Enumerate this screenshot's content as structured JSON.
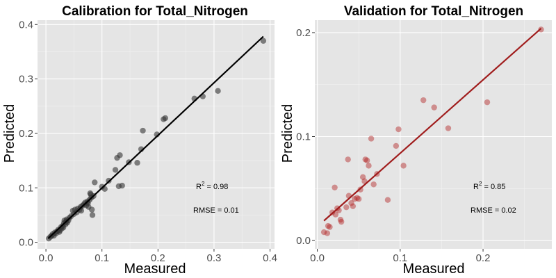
{
  "chart_data": [
    {
      "type": "scatter",
      "title": "Calibration for Total_Nitrogen",
      "xlabel": "Measured",
      "ylabel": "Predicted",
      "xlim": [
        -0.015,
        0.408
      ],
      "ylim": [
        -0.012,
        0.408
      ],
      "xticks": [
        0.0,
        0.1,
        0.2,
        0.3,
        0.4
      ],
      "xtick_labels": [
        "0.0",
        "0.1",
        "0.2",
        "0.3",
        "0.4"
      ],
      "yticks": [
        0.0,
        0.1,
        0.2,
        0.3,
        0.4
      ],
      "ytick_labels": [
        "0.0",
        "0.1",
        "0.2",
        "0.3",
        "0.4"
      ],
      "grid": true,
      "background": "#e5e5e5",
      "point_color": "#333333",
      "line_color": "#000000",
      "fit_line": {
        "x": [
          0.004,
          0.388
        ],
        "y": [
          0.007,
          0.378
        ]
      },
      "annotations": {
        "r2_label": "R",
        "r2_sup": "2",
        "r2_value": " = 0.98",
        "rmse": "RMSE = 0.01"
      },
      "points": {
        "x": [
          0.005,
          0.008,
          0.01,
          0.012,
          0.014,
          0.016,
          0.018,
          0.02,
          0.022,
          0.024,
          0.025,
          0.027,
          0.028,
          0.03,
          0.031,
          0.032,
          0.033,
          0.035,
          0.036,
          0.037,
          0.038,
          0.04,
          0.042,
          0.045,
          0.048,
          0.05,
          0.052,
          0.055,
          0.057,
          0.06,
          0.062,
          0.063,
          0.065,
          0.068,
          0.07,
          0.072,
          0.074,
          0.075,
          0.076,
          0.078,
          0.079,
          0.08,
          0.081,
          0.082,
          0.083,
          0.085,
          0.087,
          0.1,
          0.105,
          0.112,
          0.124,
          0.127,
          0.13,
          0.132,
          0.136,
          0.148,
          0.163,
          0.17,
          0.173,
          0.198,
          0.21,
          0.213,
          0.265,
          0.28,
          0.307,
          0.388
        ],
        "y": [
          0.007,
          0.01,
          0.012,
          0.015,
          0.012,
          0.018,
          0.016,
          0.02,
          0.023,
          0.019,
          0.022,
          0.028,
          0.025,
          0.03,
          0.027,
          0.035,
          0.04,
          0.033,
          0.038,
          0.042,
          0.036,
          0.04,
          0.045,
          0.048,
          0.058,
          0.052,
          0.06,
          0.055,
          0.062,
          0.06,
          0.065,
          0.058,
          0.067,
          0.07,
          0.073,
          0.068,
          0.075,
          0.072,
          0.065,
          0.078,
          0.09,
          0.088,
          0.082,
          0.06,
          0.05,
          0.085,
          0.11,
          0.102,
          0.098,
          0.113,
          0.133,
          0.155,
          0.103,
          0.16,
          0.104,
          0.147,
          0.146,
          0.171,
          0.205,
          0.198,
          0.226,
          0.228,
          0.264,
          0.268,
          0.278,
          0.37
        ]
      }
    },
    {
      "type": "scatter",
      "title": "Validation for Total_Nitrogen",
      "xlabel": "Measured",
      "ylabel": "Predicted",
      "xlim": [
        -0.003,
        0.283
      ],
      "ylim": [
        -0.008,
        0.212
      ],
      "xticks": [
        0.0,
        0.1,
        0.2
      ],
      "xtick_labels": [
        "0.0",
        "0.1",
        "0.2"
      ],
      "yticks": [
        0.0,
        0.1,
        0.2
      ],
      "ytick_labels": [
        "0.0",
        "0.1",
        "0.2"
      ],
      "grid": true,
      "background": "#e5e5e5",
      "point_color": "#b22222",
      "line_color": "#a01c1c",
      "fit_line": {
        "x": [
          0.008,
          0.27
        ],
        "y": [
          0.019,
          0.204
        ]
      },
      "annotations": {
        "r2_label": "R",
        "r2_sup": "2",
        "r2_value": " = 0.85",
        "rmse": "RMSE = 0.02"
      },
      "points": {
        "x": [
          0.008,
          0.012,
          0.013,
          0.015,
          0.018,
          0.021,
          0.022,
          0.024,
          0.026,
          0.028,
          0.029,
          0.035,
          0.037,
          0.038,
          0.041,
          0.043,
          0.045,
          0.048,
          0.05,
          0.052,
          0.055,
          0.057,
          0.058,
          0.06,
          0.062,
          0.065,
          0.068,
          0.072,
          0.085,
          0.095,
          0.098,
          0.104,
          0.128,
          0.141,
          0.158,
          0.205,
          0.27
        ],
        "y": [
          0.008,
          0.007,
          0.014,
          0.013,
          0.027,
          0.051,
          0.025,
          0.031,
          0.029,
          0.02,
          0.018,
          0.032,
          0.078,
          0.043,
          0.036,
          0.033,
          0.04,
          0.041,
          0.04,
          0.049,
          0.061,
          0.057,
          0.078,
          0.077,
          0.072,
          0.098,
          0.054,
          0.064,
          0.039,
          0.091,
          0.107,
          0.072,
          0.135,
          0.128,
          0.108,
          0.133,
          0.203
        ]
      }
    }
  ]
}
